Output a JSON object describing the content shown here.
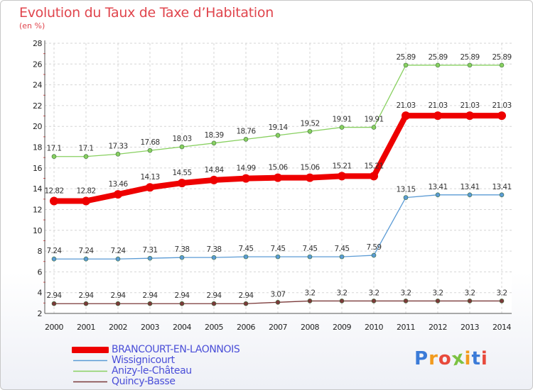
{
  "chart_data": {
    "type": "line",
    "title": "Evolution du Taux de Taxe d’Habitation",
    "subtitle": "(en %)",
    "ylim": [
      2,
      28
    ],
    "yticks": [
      2,
      4,
      6,
      8,
      10,
      12,
      14,
      16,
      18,
      20,
      22,
      24,
      26,
      28
    ],
    "x": [
      "2000",
      "2001",
      "2002",
      "2003",
      "2004",
      "2005",
      "2006",
      "2007",
      "2008",
      "2009",
      "2010",
      "2011",
      "2012",
      "2013",
      "2014"
    ],
    "grid": true,
    "legend_position": "bottom-left",
    "series": [
      {
        "name": "BRANCOURT-EN-LAONNOIS",
        "color": "#ee0000",
        "values": [
          12.82,
          12.82,
          13.46,
          14.13,
          14.55,
          14.84,
          14.99,
          15.06,
          15.06,
          15.21,
          15.21,
          21.03,
          21.03,
          21.03,
          21.03
        ],
        "labels": [
          "12.82",
          "12.82",
          "13.46",
          "14.13",
          "14.55",
          "14.84",
          "14.99",
          "15.06",
          "15.06",
          "15.21",
          "15.21",
          "21.03",
          "21.03",
          "21.03",
          "21.03"
        ]
      },
      {
        "name": "Wissignicourt",
        "color": "#5b9bd5",
        "values": [
          7.24,
          7.24,
          7.24,
          7.31,
          7.38,
          7.38,
          7.45,
          7.45,
          7.45,
          7.45,
          7.59,
          13.15,
          13.41,
          13.41,
          13.41
        ],
        "labels": [
          "7.24",
          "7.24",
          "7.24",
          "7.31",
          "7.38",
          "7.38",
          "7.45",
          "7.45",
          "7.45",
          "7.45",
          "7.59",
          "13.15",
          "13.41",
          "13.41",
          "13.41"
        ]
      },
      {
        "name": "Anizy-le-Château",
        "color": "#88d060",
        "values": [
          17.1,
          17.1,
          17.33,
          17.68,
          18.03,
          18.39,
          18.76,
          19.14,
          19.52,
          19.91,
          19.91,
          25.89,
          25.89,
          25.89,
          25.89
        ],
        "labels": [
          "17.1",
          "17.1",
          "17.33",
          "17.68",
          "18.03",
          "18.39",
          "18.76",
          "19.14",
          "19.52",
          "19.91",
          "19.91",
          "25.89",
          "25.89",
          "25.89",
          "25.89"
        ]
      },
      {
        "name": "Quincy-Basse",
        "color": "#7b3a3a",
        "values": [
          2.94,
          2.94,
          2.94,
          2.94,
          2.94,
          2.94,
          2.94,
          3.07,
          3.2,
          3.2,
          3.2,
          3.2,
          3.2,
          3.2,
          3.2
        ],
        "labels": [
          "2.94",
          "2.94",
          "2.94",
          "2.94",
          "2.94",
          "2.94",
          "2.94",
          "3.07",
          "3.2",
          "3.2",
          "3.2",
          "3.2",
          "3.2",
          "3.2",
          "3.2"
        ]
      }
    ]
  },
  "logo": {
    "text": "Proxiti"
  }
}
